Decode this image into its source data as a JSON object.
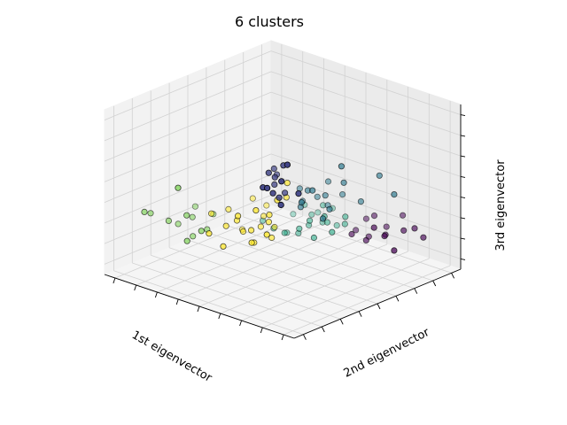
{
  "chart_data": {
    "type": "scatter",
    "projection": "3d",
    "title": "6 clusters",
    "xlabel": "1st eigenvector",
    "ylabel": "2nd eigenvector",
    "zlabel": "3rd eigenvector",
    "tick_labels_visible": false,
    "grid": true,
    "x_ticks": 9,
    "y_ticks": 9,
    "z_ticks": 8,
    "view": "elev ~48, azim ~134",
    "colors": [
      "#440154",
      "#414487",
      "#2a788e",
      "#22a884",
      "#7ad151",
      "#fde725"
    ],
    "clusters": [
      {
        "color": "#440154",
        "points": [
          [
            0.19,
            0.77,
            0.2
          ],
          [
            0.23,
            0.8,
            0.22
          ],
          [
            0.16,
            0.84,
            0.24
          ],
          [
            0.26,
            0.73,
            0.18
          ],
          [
            0.2,
            0.72,
            0.3
          ],
          [
            0.14,
            0.88,
            0.26
          ],
          [
            0.29,
            0.68,
            0.21
          ],
          [
            0.18,
            0.66,
            0.25
          ],
          [
            0.11,
            0.9,
            0.2
          ],
          [
            0.24,
            0.86,
            0.16
          ],
          [
            0.21,
            0.7,
            0.17
          ],
          [
            0.27,
            0.78,
            0.28
          ],
          [
            0.15,
            0.74,
            0.22
          ],
          [
            0.22,
            0.64,
            0.19
          ],
          [
            0.12,
            0.8,
            0.3
          ]
        ]
      },
      {
        "color": "#414487",
        "points": [
          [
            0.79,
            0.78,
            0.88
          ],
          [
            0.7,
            0.68,
            0.8
          ],
          [
            0.82,
            0.7,
            0.72
          ],
          [
            0.66,
            0.6,
            0.68
          ],
          [
            0.74,
            0.66,
            0.64
          ],
          [
            0.78,
            0.74,
            0.76
          ],
          [
            0.64,
            0.58,
            0.62
          ],
          [
            0.72,
            0.62,
            0.74
          ],
          [
            0.62,
            0.56,
            0.7
          ],
          [
            0.76,
            0.72,
            0.6
          ],
          [
            0.68,
            0.64,
            0.58
          ],
          [
            0.8,
            0.66,
            0.7
          ],
          [
            0.58,
            0.54,
            0.64
          ],
          [
            0.7,
            0.76,
            0.66
          ],
          [
            0.6,
            0.6,
            0.56
          ]
        ]
      },
      {
        "color": "#2a788e",
        "points": [
          [
            0.44,
            0.58,
            0.5
          ],
          [
            0.38,
            0.62,
            0.46
          ],
          [
            0.48,
            0.64,
            0.54
          ],
          [
            0.36,
            0.56,
            0.42
          ],
          [
            0.42,
            0.52,
            0.48
          ],
          [
            0.34,
            0.6,
            0.52
          ],
          [
            0.4,
            0.66,
            0.4
          ],
          [
            0.3,
            0.64,
            0.44
          ],
          [
            0.46,
            0.56,
            0.4
          ],
          [
            0.32,
            0.58,
            0.36
          ],
          [
            0.28,
            0.72,
            0.42
          ],
          [
            0.5,
            0.6,
            0.46
          ],
          [
            0.38,
            0.5,
            0.38
          ],
          [
            0.36,
            0.7,
            0.56
          ],
          [
            0.44,
            0.66,
            0.36
          ],
          [
            0.26,
            0.8,
            0.6
          ],
          [
            0.24,
            0.86,
            0.5
          ],
          [
            0.42,
            0.74,
            0.7
          ]
        ]
      },
      {
        "color": "#22a884",
        "points": [
          [
            0.3,
            0.56,
            0.24
          ],
          [
            0.26,
            0.5,
            0.2
          ],
          [
            0.34,
            0.58,
            0.3
          ],
          [
            0.22,
            0.54,
            0.18
          ],
          [
            0.28,
            0.46,
            0.24
          ],
          [
            0.36,
            0.52,
            0.26
          ],
          [
            0.24,
            0.6,
            0.22
          ],
          [
            0.32,
            0.48,
            0.2
          ],
          [
            0.2,
            0.5,
            0.26
          ],
          [
            0.38,
            0.56,
            0.18
          ],
          [
            0.3,
            0.44,
            0.3
          ],
          [
            0.26,
            0.62,
            0.28
          ],
          [
            0.34,
            0.62,
            0.22
          ],
          [
            0.4,
            0.5,
            0.22
          ],
          [
            0.22,
            0.44,
            0.22
          ],
          [
            0.36,
            0.46,
            0.16
          ],
          [
            0.28,
            0.52,
            0.32
          ],
          [
            0.44,
            0.4,
            0.2
          ],
          [
            0.36,
            0.4,
            0.14
          ],
          [
            0.42,
            0.44,
            0.18
          ],
          [
            0.3,
            0.38,
            0.22
          ],
          [
            0.46,
            0.36,
            0.24
          ]
        ]
      },
      {
        "color": "#7ad151",
        "points": [
          [
            0.7,
            0.2,
            0.3
          ],
          [
            0.78,
            0.24,
            0.36
          ],
          [
            0.74,
            0.16,
            0.26
          ],
          [
            0.82,
            0.18,
            0.32
          ],
          [
            0.68,
            0.26,
            0.24
          ],
          [
            0.76,
            0.3,
            0.28
          ],
          [
            0.72,
            0.22,
            0.2
          ],
          [
            0.8,
            0.26,
            0.22
          ],
          [
            0.66,
            0.18,
            0.34
          ],
          [
            0.9,
            0.3,
            0.6
          ],
          [
            0.92,
            0.14,
            0.4
          ],
          [
            0.86,
            0.12,
            0.36
          ],
          [
            0.62,
            0.24,
            0.3
          ]
        ]
      },
      {
        "color": "#fde725",
        "points": [
          [
            0.62,
            0.44,
            0.28
          ],
          [
            0.56,
            0.48,
            0.32
          ],
          [
            0.66,
            0.4,
            0.34
          ],
          [
            0.54,
            0.42,
            0.26
          ],
          [
            0.6,
            0.38,
            0.24
          ],
          [
            0.58,
            0.5,
            0.38
          ],
          [
            0.52,
            0.46,
            0.2
          ],
          [
            0.64,
            0.46,
            0.22
          ],
          [
            0.5,
            0.4,
            0.3
          ],
          [
            0.68,
            0.36,
            0.3
          ],
          [
            0.56,
            0.34,
            0.22
          ],
          [
            0.48,
            0.44,
            0.24
          ],
          [
            0.62,
            0.32,
            0.36
          ],
          [
            0.52,
            0.36,
            0.4
          ],
          [
            0.66,
            0.5,
            0.44
          ],
          [
            0.5,
            0.52,
            0.46
          ],
          [
            0.58,
            0.42,
            0.18
          ],
          [
            0.6,
            0.56,
            0.5
          ],
          [
            0.7,
            0.44,
            0.4
          ],
          [
            0.54,
            0.56,
            0.58
          ],
          [
            0.72,
            0.38,
            0.2
          ],
          [
            0.46,
            0.38,
            0.34
          ],
          [
            0.64,
            0.54,
            0.3
          ],
          [
            0.7,
            0.3,
            0.36
          ],
          [
            0.76,
            0.34,
            0.28
          ]
        ]
      }
    ]
  }
}
